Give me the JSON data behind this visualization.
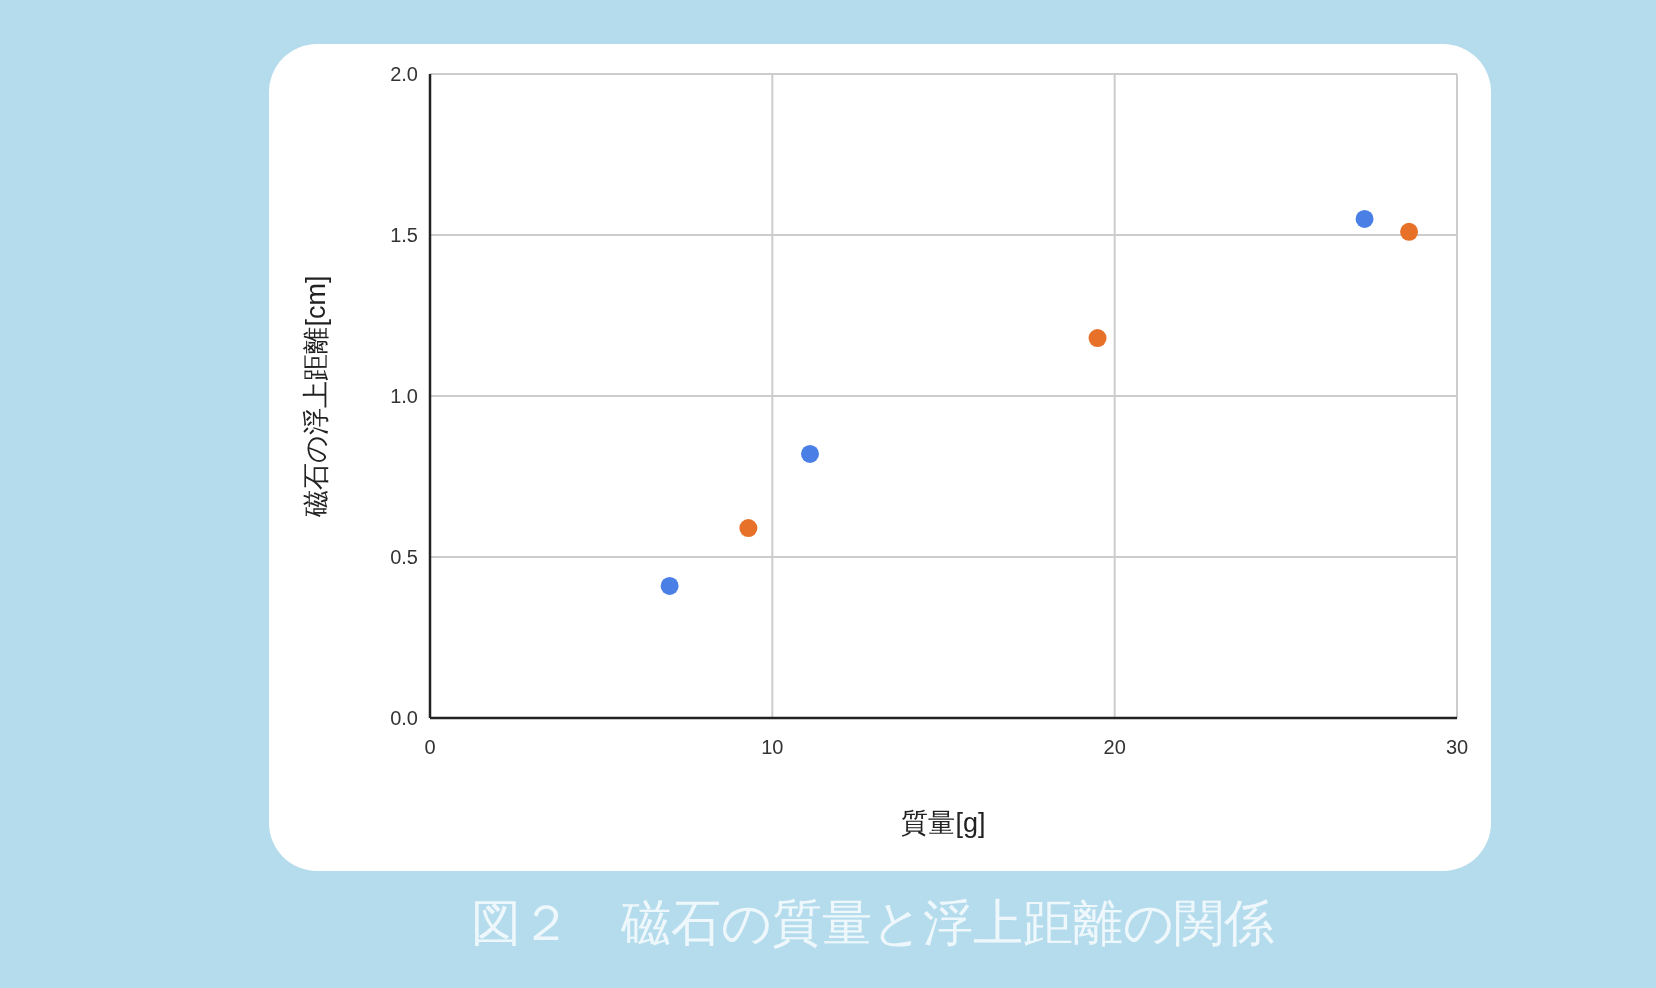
{
  "chart_data": {
    "type": "scatter",
    "title": "図２　磁石の質量と浮上距離の関係",
    "xlabel": "質量[g]",
    "ylabel": "磁石の浮上距離[cm]",
    "series": [
      {
        "color": "#4a7fe6",
        "x": [
          7.0,
          11.1,
          27.3
        ],
        "values": [
          0.41,
          0.82,
          1.55
        ]
      },
      {
        "color": "#e8712a",
        "x": [
          9.3,
          19.5,
          28.6
        ],
        "values": [
          0.59,
          1.18,
          1.51
        ]
      }
    ],
    "xlim": [
      0,
      30
    ],
    "ylim": [
      0,
      2
    ],
    "xticks": [
      0,
      10,
      20,
      30
    ],
    "yticks": [
      {
        "value": 0,
        "label": "0.0"
      },
      0.5,
      {
        "value": 1,
        "label": "1.0"
      },
      1.5,
      {
        "value": 2,
        "label": "2.0"
      }
    ],
    "grid": true,
    "marker": "circle"
  }
}
